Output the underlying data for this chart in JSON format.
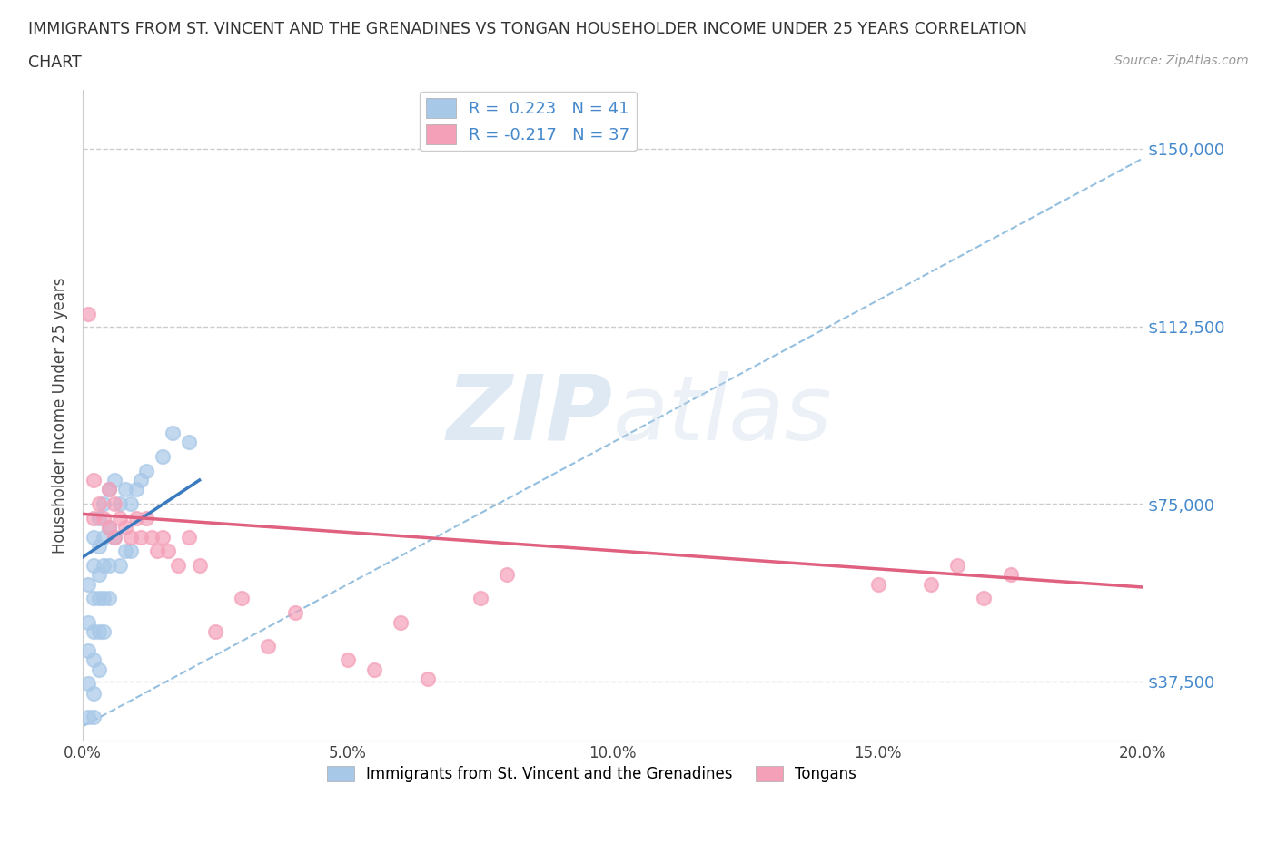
{
  "title_line1": "IMMIGRANTS FROM ST. VINCENT AND THE GRENADINES VS TONGAN HOUSEHOLDER INCOME UNDER 25 YEARS CORRELATION",
  "title_line2": "CHART",
  "source_text": "Source: ZipAtlas.com",
  "r_blue": 0.223,
  "n_blue": 41,
  "r_pink": -0.217,
  "n_pink": 37,
  "blue_color": "#a8c8e8",
  "pink_color": "#f4a0b8",
  "blue_line_color": "#3a7abf",
  "pink_line_color": "#e06080",
  "blue_dash_color": "#7ab0d8",
  "ylabel": "Householder Income Under 25 years",
  "xlim": [
    0.0,
    0.2
  ],
  "ylim": [
    25000,
    162500
  ],
  "yticks": [
    37500,
    75000,
    112500,
    150000
  ],
  "ytick_labels": [
    "$37,500",
    "$75,000",
    "$112,500",
    "$150,000"
  ],
  "xticks": [
    0.0,
    0.025,
    0.05,
    0.075,
    0.1,
    0.125,
    0.15,
    0.175,
    0.2
  ],
  "xtick_labels": [
    "0.0%",
    "",
    "5.0%",
    "",
    "10.0%",
    "",
    "15.0%",
    "",
    "20.0%"
  ],
  "legend_label_blue": "Immigrants from St. Vincent and the Grenadines",
  "legend_label_pink": "Tongans",
  "blue_x": [
    0.001,
    0.001,
    0.001,
    0.001,
    0.001,
    0.002,
    0.002,
    0.002,
    0.002,
    0.002,
    0.002,
    0.002,
    0.003,
    0.003,
    0.003,
    0.003,
    0.003,
    0.003,
    0.004,
    0.004,
    0.004,
    0.004,
    0.004,
    0.005,
    0.005,
    0.005,
    0.005,
    0.006,
    0.006,
    0.007,
    0.007,
    0.008,
    0.008,
    0.009,
    0.009,
    0.01,
    0.011,
    0.012,
    0.015,
    0.017,
    0.02
  ],
  "blue_y": [
    50000,
    58000,
    44000,
    37000,
    30000,
    68000,
    62000,
    55000,
    48000,
    42000,
    35000,
    30000,
    72000,
    66000,
    60000,
    55000,
    48000,
    40000,
    75000,
    68000,
    62000,
    55000,
    48000,
    78000,
    70000,
    62000,
    55000,
    80000,
    68000,
    75000,
    62000,
    78000,
    65000,
    75000,
    65000,
    78000,
    80000,
    82000,
    85000,
    90000,
    88000
  ],
  "pink_x": [
    0.001,
    0.002,
    0.002,
    0.003,
    0.004,
    0.005,
    0.005,
    0.006,
    0.006,
    0.007,
    0.008,
    0.009,
    0.01,
    0.011,
    0.012,
    0.013,
    0.014,
    0.015,
    0.016,
    0.018,
    0.02,
    0.022,
    0.025,
    0.03,
    0.035,
    0.04,
    0.05,
    0.055,
    0.06,
    0.065,
    0.075,
    0.08,
    0.15,
    0.16,
    0.165,
    0.17,
    0.175
  ],
  "pink_y": [
    115000,
    80000,
    72000,
    75000,
    72000,
    78000,
    70000,
    75000,
    68000,
    72000,
    70000,
    68000,
    72000,
    68000,
    72000,
    68000,
    65000,
    68000,
    65000,
    62000,
    68000,
    62000,
    48000,
    55000,
    45000,
    52000,
    42000,
    40000,
    50000,
    38000,
    55000,
    60000,
    58000,
    58000,
    62000,
    55000,
    60000
  ],
  "watermark_zip": "ZIP",
  "watermark_atlas": "atlas",
  "background_color": "#ffffff"
}
